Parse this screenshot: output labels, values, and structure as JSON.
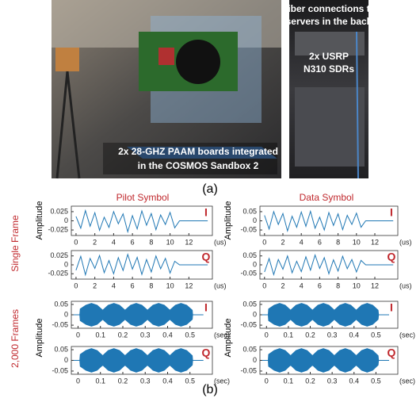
{
  "photos": {
    "left_caption": [
      "2x 28-GHZ PAAM boards integrated",
      "in the COSMOS Sandbox 2"
    ],
    "right_top": [
      "Fiber connections to",
      "servers in the back"
    ],
    "right_middle": [
      "2x USRP",
      "N310 SDRs"
    ]
  },
  "figure": {
    "panel_a_label": "(a)",
    "panel_b_label": "(b)",
    "column_titles": [
      "Pilot Symbol",
      "Data Symbol"
    ],
    "row_labels": [
      "Single Frame",
      "2,000 Frames"
    ],
    "amplitude_label": "Amplitude"
  },
  "chart_data": [
    {
      "type": "line",
      "channel": "I",
      "x_unit": "(us)",
      "color": "#1f77b4",
      "x": [
        0,
        0.5,
        1,
        1.5,
        2,
        2.5,
        3,
        3.5,
        4,
        4.5,
        5,
        5.5,
        6,
        6.5,
        7,
        7.5,
        8,
        8.5,
        9,
        9.5,
        10,
        10.5,
        11,
        14
      ],
      "values": [
        0.012,
        -0.02,
        0.028,
        -0.015,
        0.022,
        -0.026,
        0.01,
        -0.018,
        0.025,
        -0.008,
        0.019,
        -0.03,
        0.014,
        -0.022,
        0.027,
        -0.012,
        0.02,
        -0.024,
        0.016,
        -0.01,
        0.023,
        -0.019,
        0,
        0
      ],
      "xlim": [
        -0.5,
        14.5
      ],
      "xticks": [
        0,
        2,
        4,
        6,
        8,
        10,
        12
      ],
      "ylim": [
        -0.04,
        0.04
      ],
      "yticks": [
        0.025,
        0,
        -0.025
      ]
    },
    {
      "type": "line",
      "channel": "I",
      "x_unit": "(us)",
      "color": "#1f77b4",
      "x": [
        0,
        0.5,
        1,
        1.5,
        2,
        2.5,
        3,
        3.5,
        4,
        4.5,
        5,
        5.5,
        6,
        6.5,
        7,
        7.5,
        8,
        8.5,
        9,
        9.5,
        10,
        10.5,
        11,
        14
      ],
      "values": [
        0.03,
        -0.045,
        0.05,
        -0.02,
        0.04,
        -0.055,
        0.025,
        -0.035,
        0.048,
        -0.03,
        0.052,
        -0.04,
        0.02,
        -0.05,
        0.045,
        -0.025,
        0.038,
        -0.048,
        0.03,
        -0.02,
        0.042,
        -0.035,
        0,
        0
      ],
      "xlim": [
        -0.5,
        14.5
      ],
      "xticks": [
        0,
        2,
        4,
        6,
        8,
        10,
        12
      ],
      "ylim": [
        -0.08,
        0.08
      ],
      "yticks": [
        0.05,
        0,
        -0.05
      ]
    },
    {
      "type": "line",
      "channel": "Q",
      "x_unit": "(us)",
      "color": "#1f77b4",
      "x": [
        0,
        0.5,
        1,
        1.5,
        2,
        2.5,
        3,
        3.5,
        4,
        4.5,
        5,
        5.5,
        6,
        6.5,
        7,
        7.5,
        8,
        8.5,
        9,
        9.5,
        10,
        10.5,
        11,
        14
      ],
      "values": [
        -0.015,
        0.024,
        -0.028,
        0.018,
        -0.01,
        0.026,
        -0.022,
        0.012,
        -0.025,
        0.02,
        -0.016,
        0.029,
        -0.012,
        0.021,
        -0.027,
        0.015,
        -0.02,
        0.025,
        -0.011,
        0.018,
        -0.023,
        0.01,
        0,
        0
      ],
      "xlim": [
        -0.5,
        14.5
      ],
      "xticks": [
        0,
        2,
        4,
        6,
        8,
        10,
        12
      ],
      "ylim": [
        -0.04,
        0.04
      ],
      "yticks": [
        0.025,
        0,
        -0.025
      ]
    },
    {
      "type": "line",
      "channel": "Q",
      "x_unit": "(us)",
      "color": "#1f77b4",
      "x": [
        0,
        0.5,
        1,
        1.5,
        2,
        2.5,
        3,
        3.5,
        4,
        4.5,
        5,
        5.5,
        6,
        6.5,
        7,
        7.5,
        8,
        8.5,
        9,
        9.5,
        10,
        10.5,
        11,
        14
      ],
      "values": [
        -0.04,
        0.035,
        -0.055,
        0.03,
        -0.025,
        0.05,
        -0.045,
        0.02,
        -0.038,
        0.045,
        -0.03,
        0.055,
        -0.02,
        0.04,
        -0.05,
        0.028,
        -0.035,
        0.048,
        -0.022,
        0.03,
        -0.04,
        0.025,
        0,
        0
      ],
      "xlim": [
        -0.5,
        14.5
      ],
      "xticks": [
        0,
        2,
        4,
        6,
        8,
        10,
        12
      ],
      "ylim": [
        -0.08,
        0.08
      ],
      "yticks": [
        0.05,
        0,
        -0.05
      ]
    },
    {
      "type": "area",
      "channel": "I",
      "x_unit": "(sec)",
      "color": "#1f77b4",
      "x": [
        -0.02,
        0.008,
        0.01,
        0.035,
        0.06,
        0.085,
        0.11,
        0.135,
        0.16,
        0.185,
        0.21,
        0.235,
        0.26,
        0.285,
        0.31,
        0.335,
        0.36,
        0.385,
        0.41,
        0.435,
        0.46,
        0.485,
        0.51,
        0.512,
        0.56
      ],
      "values": [
        0,
        0,
        0.028,
        0.046,
        0.055,
        0.046,
        0.022,
        0.046,
        0.055,
        0.046,
        0.022,
        0.046,
        0.055,
        0.046,
        0.022,
        0.046,
        0.055,
        0.046,
        0.022,
        0.046,
        0.055,
        0.046,
        0.022,
        0,
        0
      ],
      "xlim": [
        -0.03,
        0.6
      ],
      "xticks": [
        0,
        0.1,
        0.2,
        0.3,
        0.4,
        0.5
      ],
      "ylim": [
        -0.065,
        0.065
      ],
      "yticks": [
        0.05,
        0,
        -0.05
      ]
    },
    {
      "type": "area",
      "channel": "I",
      "x_unit": "(sec)",
      "color": "#1f77b4",
      "x": [
        -0.02,
        0.008,
        0.01,
        0.035,
        0.06,
        0.085,
        0.11,
        0.135,
        0.16,
        0.185,
        0.21,
        0.235,
        0.26,
        0.285,
        0.31,
        0.335,
        0.36,
        0.385,
        0.41,
        0.435,
        0.46,
        0.485,
        0.51,
        0.512,
        0.56
      ],
      "values": [
        0,
        0,
        0.028,
        0.046,
        0.055,
        0.046,
        0.022,
        0.046,
        0.055,
        0.046,
        0.022,
        0.046,
        0.055,
        0.046,
        0.022,
        0.046,
        0.055,
        0.046,
        0.022,
        0.046,
        0.055,
        0.046,
        0.022,
        0,
        0
      ],
      "xlim": [
        -0.03,
        0.6
      ],
      "xticks": [
        0,
        0.1,
        0.2,
        0.3,
        0.4,
        0.5
      ],
      "ylim": [
        -0.065,
        0.065
      ],
      "yticks": [
        0.05,
        0,
        -0.05
      ]
    },
    {
      "type": "area",
      "channel": "Q",
      "x_unit": "(sec)",
      "color": "#1f77b4",
      "x": [
        -0.02,
        0.008,
        0.01,
        0.035,
        0.06,
        0.085,
        0.11,
        0.135,
        0.16,
        0.185,
        0.21,
        0.235,
        0.26,
        0.285,
        0.31,
        0.335,
        0.36,
        0.385,
        0.41,
        0.435,
        0.46,
        0.485,
        0.51,
        0.512,
        0.56
      ],
      "values": [
        0,
        0,
        0.028,
        0.046,
        0.055,
        0.046,
        0.022,
        0.046,
        0.055,
        0.046,
        0.022,
        0.046,
        0.055,
        0.046,
        0.022,
        0.046,
        0.055,
        0.046,
        0.022,
        0.046,
        0.055,
        0.046,
        0.022,
        0,
        0
      ],
      "xlim": [
        -0.03,
        0.6
      ],
      "xticks": [
        0,
        0.1,
        0.2,
        0.3,
        0.4,
        0.5
      ],
      "ylim": [
        -0.065,
        0.065
      ],
      "yticks": [
        0.05,
        0,
        -0.05
      ]
    },
    {
      "type": "area",
      "channel": "Q",
      "x_unit": "(sec)",
      "color": "#1f77b4",
      "x": [
        -0.02,
        0.008,
        0.01,
        0.035,
        0.06,
        0.085,
        0.11,
        0.135,
        0.16,
        0.185,
        0.21,
        0.235,
        0.26,
        0.285,
        0.31,
        0.335,
        0.36,
        0.385,
        0.41,
        0.435,
        0.46,
        0.485,
        0.51,
        0.512,
        0.56
      ],
      "values": [
        0,
        0,
        0.028,
        0.046,
        0.055,
        0.046,
        0.022,
        0.046,
        0.055,
        0.046,
        0.022,
        0.046,
        0.055,
        0.046,
        0.022,
        0.046,
        0.055,
        0.046,
        0.022,
        0.046,
        0.055,
        0.046,
        0.022,
        0,
        0
      ],
      "xlim": [
        -0.03,
        0.6
      ],
      "xticks": [
        0,
        0.1,
        0.2,
        0.3,
        0.4,
        0.5
      ],
      "ylim": [
        -0.065,
        0.065
      ],
      "yticks": [
        0.05,
        0,
        -0.05
      ]
    }
  ]
}
